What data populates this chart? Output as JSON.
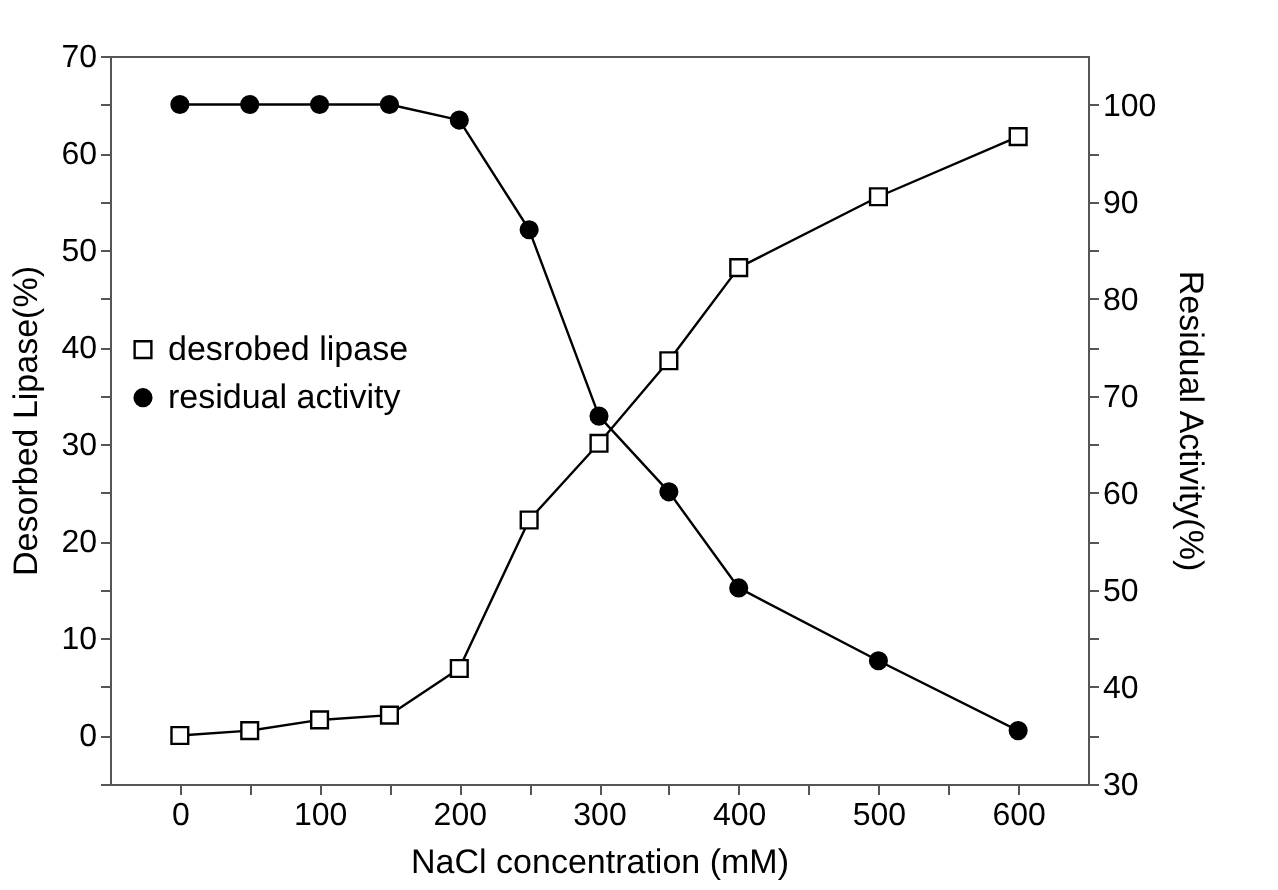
{
  "chart_data": {
    "type": "line",
    "xlabel": "NaCl concentration (mM)",
    "ylabel": "Desorbed Lipase(%)",
    "y2label": "Residual Activity(%)",
    "x": [
      0,
      50,
      100,
      150,
      200,
      250,
      300,
      350,
      400,
      500,
      600
    ],
    "series": [
      {
        "name": "desrobed lipase",
        "color": "#000000",
        "marker": "square",
        "values": [
          0,
          0.5,
          1.6,
          2.1,
          6.9,
          22.2,
          30.1,
          38.6,
          48.2,
          55.5,
          61.7
        ]
      },
      {
        "name": "residual activity",
        "color": "#000000",
        "marker": "circle",
        "axis": "y2",
        "values": [
          100,
          100,
          100,
          100,
          98.4,
          87.1,
          67.9,
          60.1,
          50.2,
          42.7,
          35.5
        ]
      }
    ],
    "xlim": [
      -50,
      650
    ],
    "xticks": [
      0,
      {
        "value": 50,
        "label": null
      },
      100,
      {
        "value": 150,
        "label": null
      },
      200,
      {
        "value": 250,
        "label": null
      },
      300,
      {
        "value": 350,
        "label": null
      },
      400,
      {
        "value": 450,
        "label": null
      },
      500,
      {
        "value": 550,
        "label": null
      },
      600
    ],
    "ylim": [
      -5,
      70
    ],
    "yticks": [
      {
        "value": -5,
        "label": null
      },
      0,
      {
        "value": 5,
        "label": null
      },
      10,
      {
        "value": 15,
        "label": null
      },
      20,
      {
        "value": 25,
        "label": null
      },
      30,
      {
        "value": 35,
        "label": null
      },
      40,
      {
        "value": 45,
        "label": null
      },
      50,
      {
        "value": 55,
        "label": null
      },
      60,
      {
        "value": 65,
        "label": null
      },
      70
    ],
    "y2lim": [
      30,
      105
    ],
    "y2ticks": [
      30,
      {
        "value": 35,
        "label": null
      },
      40,
      {
        "value": 45,
        "label": null
      },
      50,
      {
        "value": 55,
        "label": null
      },
      60,
      {
        "value": 65,
        "label": null
      },
      70,
      {
        "value": 75,
        "label": null
      },
      80,
      {
        "value": 85,
        "label": null
      },
      90,
      {
        "value": 95,
        "label": null
      },
      100
    ],
    "legend": "left",
    "grid": false,
    "line_style": "solid"
  }
}
